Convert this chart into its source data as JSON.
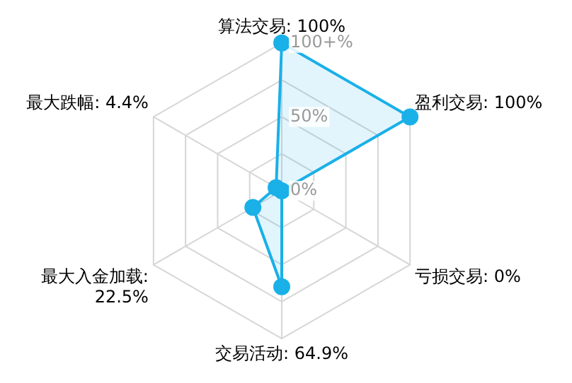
{
  "chart_data": {
    "type": "radar",
    "categories": [
      "算法交易: 100%",
      "盈利交易: 100%",
      "亏损交易: 0%",
      "交易活动: 64.9%",
      "最大入金加载: 22.5%",
      "最大跌幅: 4.4%"
    ],
    "series": [
      {
        "color": "#1ab0e8",
        "values": [
          100,
          100,
          0,
          64.9,
          22.5,
          4.4
        ]
      }
    ],
    "ylim": [
      0,
      100
    ],
    "yticks": [
      {
        "value": 0,
        "label": "0%"
      },
      {
        "value": 50,
        "label": "50%"
      },
      {
        "value": 100,
        "label": "100+%"
      }
    ],
    "grid": true,
    "legend": false,
    "marker": "circle",
    "line_style": "solid"
  }
}
